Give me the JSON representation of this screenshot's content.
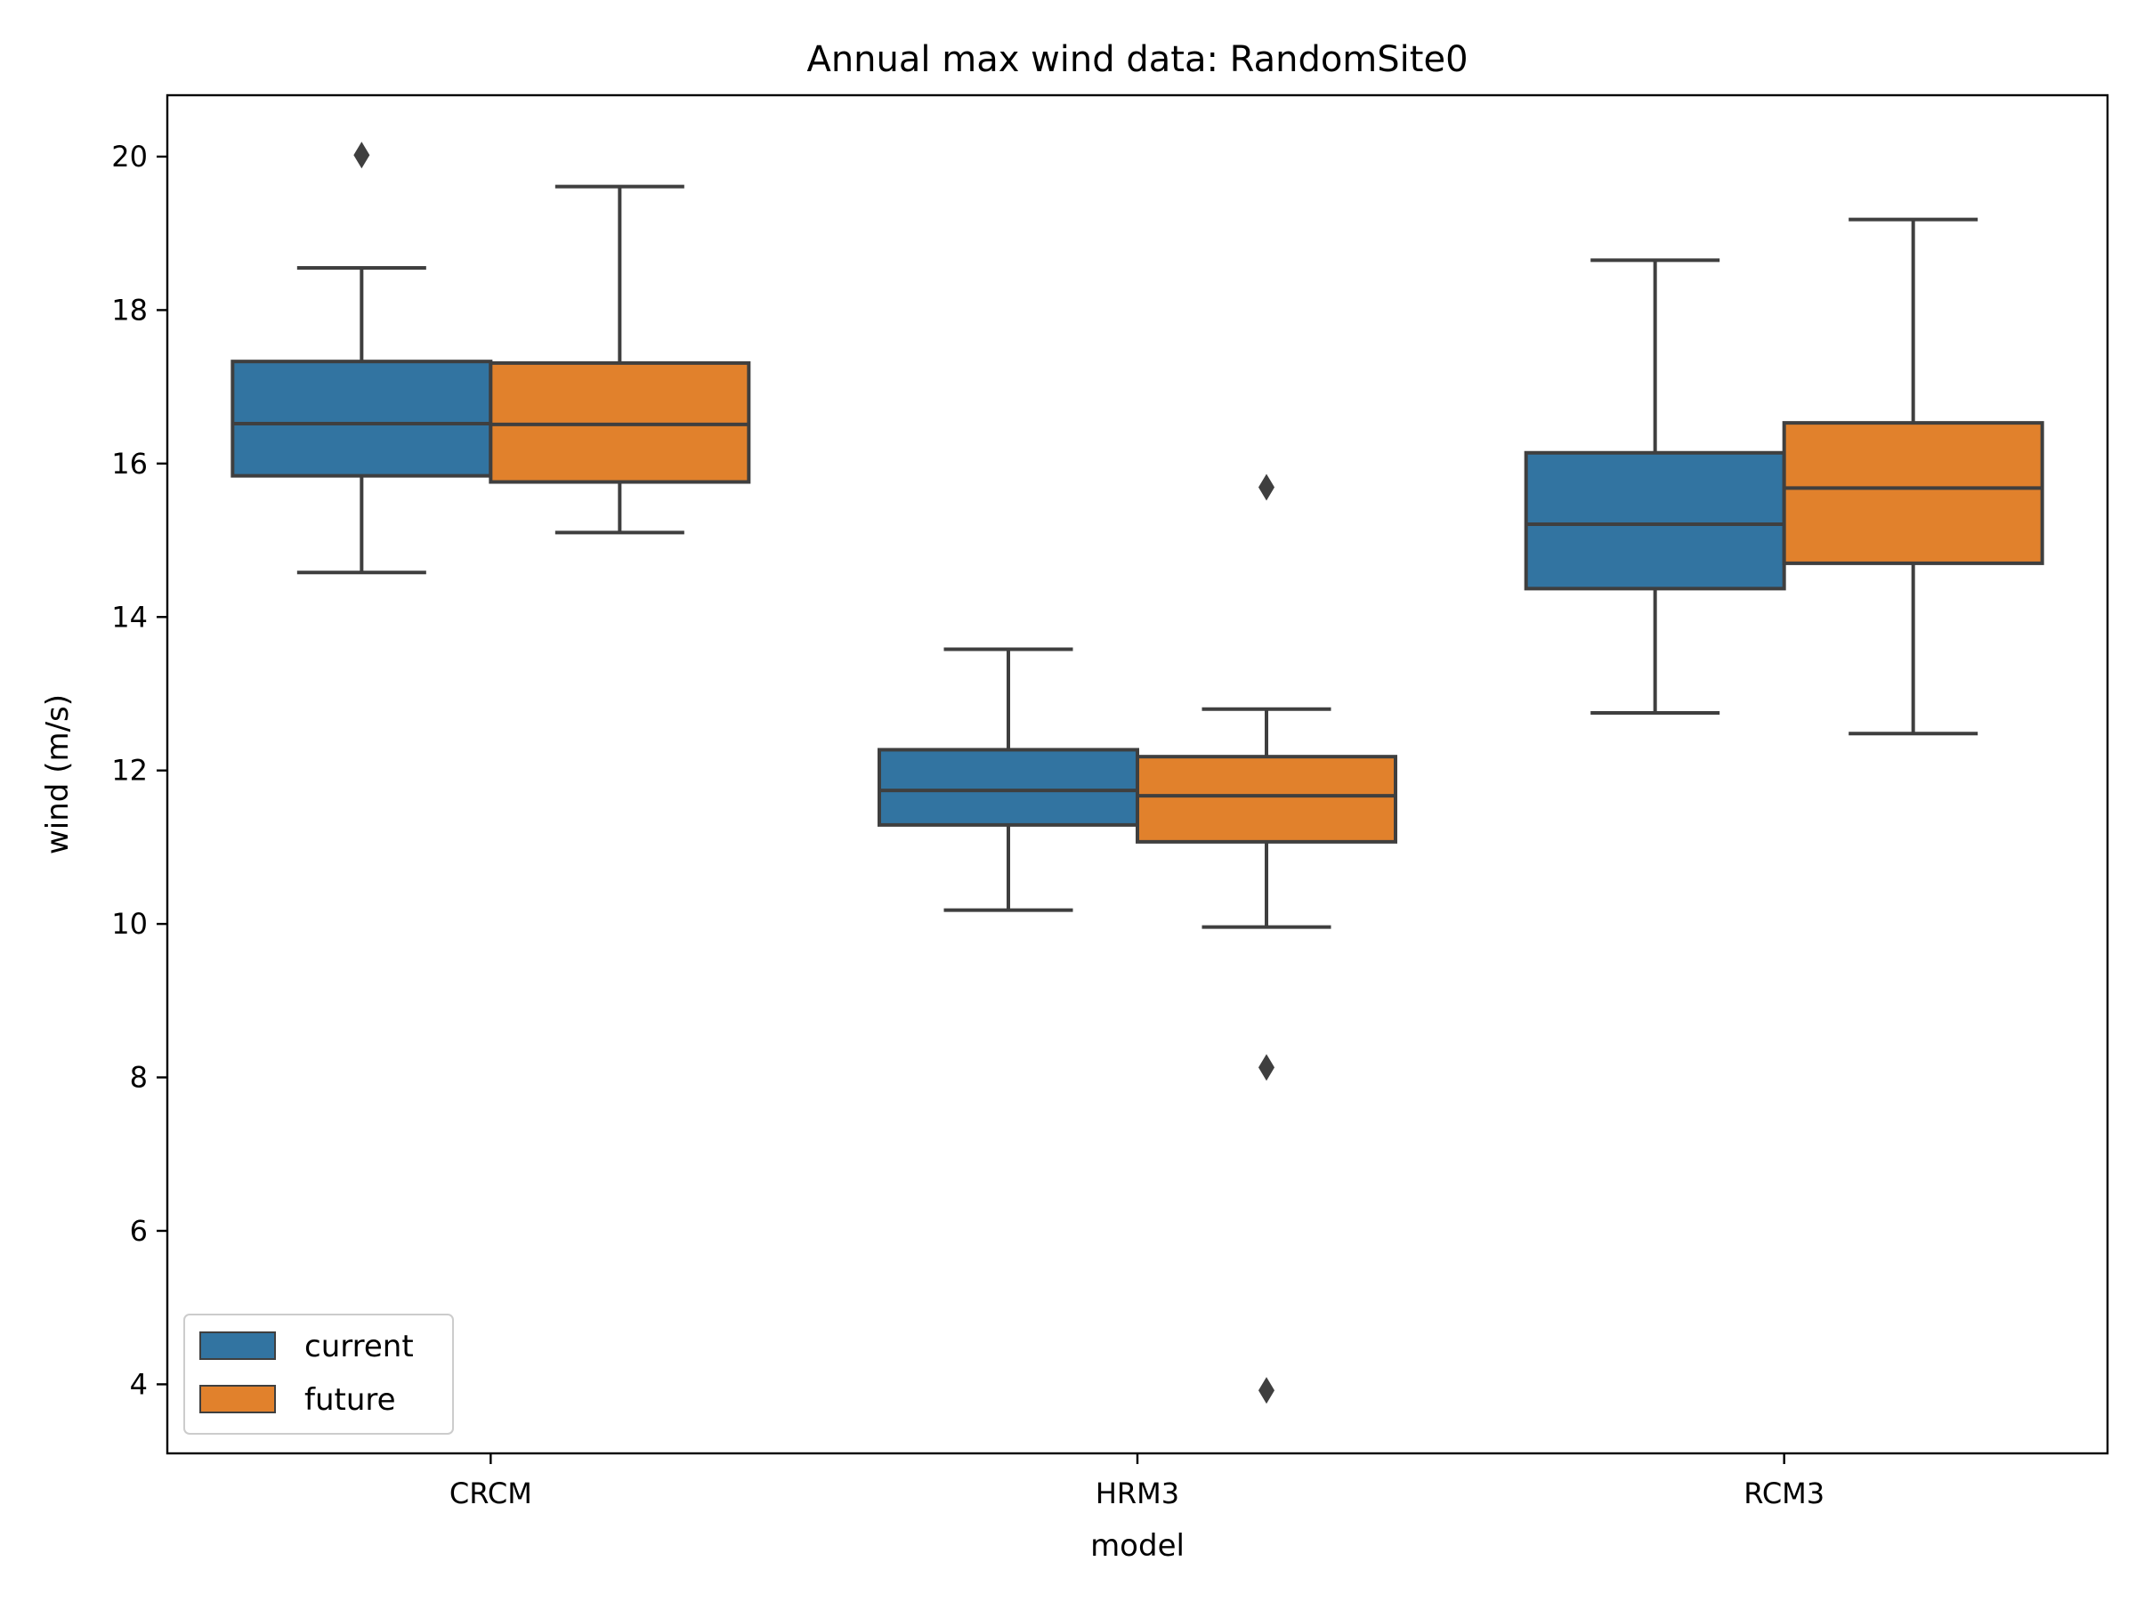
{
  "chart_data": {
    "type": "box",
    "title": "Annual max wind data: RandomSite0",
    "xlabel": "model",
    "ylabel": "wind (m/s)",
    "categories": [
      "CRCM",
      "HRM3",
      "RCM3"
    ],
    "ylim": [
      3.1,
      20.8
    ],
    "yticks": [
      4,
      6,
      8,
      10,
      12,
      14,
      16,
      18,
      20
    ],
    "grid": false,
    "legend": {
      "position": "lower-left",
      "entries": [
        "current",
        "future"
      ]
    },
    "series": [
      {
        "name": "current",
        "color": "#3274a1",
        "boxes": [
          {
            "category": "CRCM",
            "whisker_low": 14.58,
            "q1": 15.84,
            "median": 16.52,
            "q3": 17.33,
            "whisker_high": 18.55,
            "outliers": [
              20.02
            ]
          },
          {
            "category": "HRM3",
            "whisker_low": 10.18,
            "q1": 11.29,
            "median": 11.74,
            "q3": 12.27,
            "whisker_high": 13.58,
            "outliers": []
          },
          {
            "category": "RCM3",
            "whisker_low": 12.75,
            "q1": 14.37,
            "median": 15.21,
            "q3": 16.14,
            "whisker_high": 18.65,
            "outliers": []
          }
        ]
      },
      {
        "name": "future",
        "color": "#e1812c",
        "boxes": [
          {
            "category": "CRCM",
            "whisker_low": 15.1,
            "q1": 15.76,
            "median": 16.51,
            "q3": 17.31,
            "whisker_high": 19.61,
            "outliers": []
          },
          {
            "category": "HRM3",
            "whisker_low": 9.96,
            "q1": 11.07,
            "median": 11.67,
            "q3": 12.18,
            "whisker_high": 12.8,
            "outliers": [
              15.69,
              8.13,
              3.92
            ]
          },
          {
            "category": "RCM3",
            "whisker_low": 12.48,
            "q1": 14.7,
            "median": 15.68,
            "q3": 16.53,
            "whisker_high": 19.18,
            "outliers": []
          }
        ]
      }
    ]
  }
}
